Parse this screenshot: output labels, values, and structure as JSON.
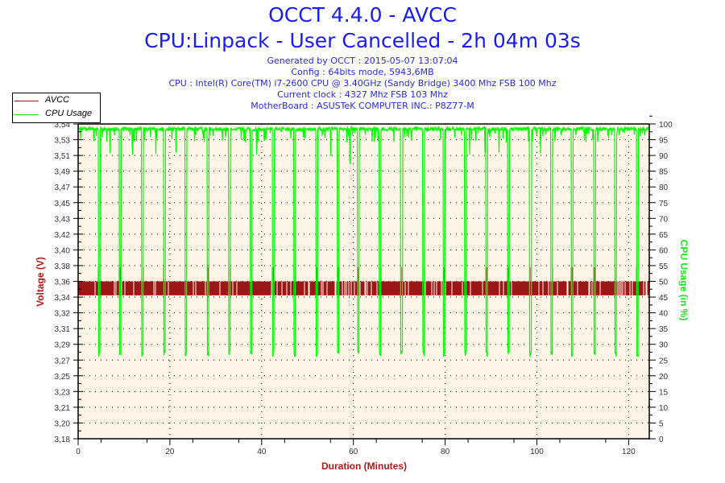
{
  "header": {
    "title": "OCCT 4.4.0 - AVCC",
    "subtitle": "CPU:Linpack - User Cancelled - 2h 04m 03s",
    "info": [
      "Generated by OCCT : 2015-05-07 13:07:04",
      "Config : 64bits mode, 5943,6MB",
      "CPU : Intel(R) Core(TM) i7-2600 CPU @ 3.40GHz (Sandy Bridge) 3400 Mhz FSB 100 Mhz",
      "Current clock : 4327 Mhz FSB 103 Mhz",
      "MotherBoard : ASUSTeK COMPUTER INC.: P8Z77-M"
    ]
  },
  "colors": {
    "title": "#1c1cf0",
    "avcc": "#9b1616",
    "cpu": "#00ff00",
    "plot_bg": "#fdf6e8"
  },
  "chart_data": {
    "type": "line",
    "title": "OCCT 4.4.0 - AVCC",
    "xlabel": "Duration (Minutes)",
    "ylabel": "Voltage (V)",
    "y2label": "CPU Usage (in %)",
    "xlim": [
      0,
      124.5
    ],
    "ylim": [
      3.18,
      3.54
    ],
    "y2lim": [
      0,
      100
    ],
    "x_ticks": [
      "0",
      "20",
      "40",
      "60",
      "80",
      "100",
      "120"
    ],
    "y_ticks": [
      "3,18",
      "3,20",
      "3,21",
      "3,23",
      "3,25",
      "3,27",
      "3,29",
      "3,31",
      "3,32",
      "3,34",
      "3,36",
      "3,38",
      "3,40",
      "3,42",
      "3,43",
      "3,45",
      "3,47",
      "3,49",
      "3,51",
      "3,53",
      "3,54"
    ],
    "y2_ticks": [
      "0",
      "5",
      "10",
      "15",
      "20",
      "25",
      "30",
      "35",
      "40",
      "45",
      "50",
      "55",
      "60",
      "65",
      "70",
      "75",
      "80",
      "85",
      "90",
      "95",
      "100"
    ],
    "grid": true,
    "legend": {
      "position": "top-left",
      "entries": [
        "AVCC",
        "CPU Usage"
      ]
    },
    "series": [
      {
        "name": "AVCC",
        "axis": "left",
        "low": 3.344,
        "high": 3.36,
        "spike": 3.376,
        "note_values": "oscillates between low and high, spikes near CPU dips"
      },
      {
        "name": "CPU Usage",
        "axis": "right",
        "baseline": 99,
        "dip_value": 26,
        "dip_minutes": [
          4.6,
          9.2,
          14.0,
          18.8,
          23.5,
          28.3,
          33.0,
          37.7,
          42.5,
          47.2,
          52.0,
          56.7,
          61.1,
          65.8,
          70.5,
          75.3,
          79.8,
          84.4,
          89.1,
          93.8,
          98.6,
          103.2,
          107.7,
          112.6,
          117.2,
          121.9
        ]
      }
    ]
  }
}
